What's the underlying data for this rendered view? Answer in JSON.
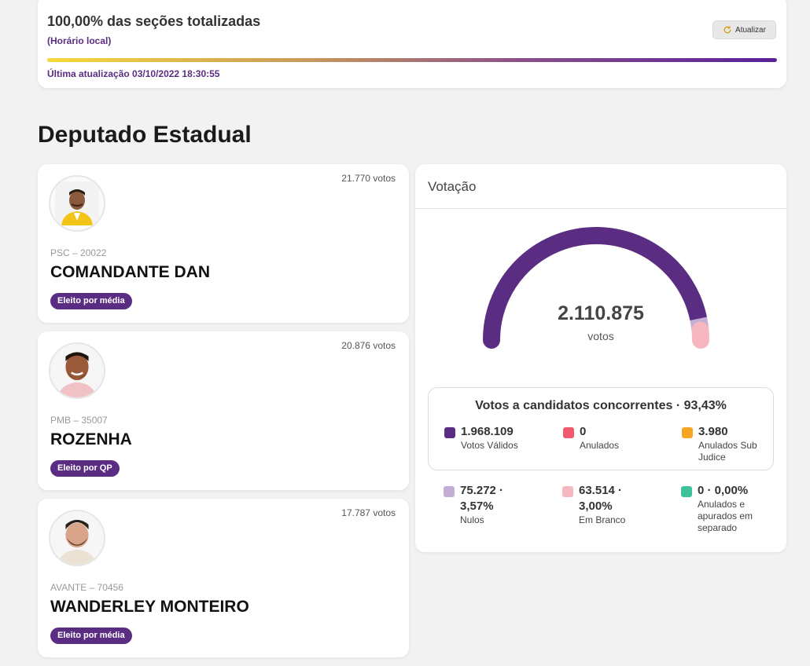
{
  "status": {
    "title": "100,00% das seções totalizadas",
    "local_time_note": "(Horário local)",
    "refresh_label": "Atualizar",
    "progress_percent": 100,
    "last_update": "Última atualização 03/10/2022 18:30:55"
  },
  "section_title": "Deputado Estadual",
  "candidates": [
    {
      "votes": "21.770 votos",
      "party": "PSC – 20022",
      "name": "COMANDANTE DAN",
      "badge": "Eleito por média"
    },
    {
      "votes": "20.876 votos",
      "party": "PMB – 35007",
      "name": "ROZENHA",
      "badge": "Eleito por QP"
    },
    {
      "votes": "17.787 votos",
      "party": "AVANTE – 70456",
      "name": "WANDERLEY MONTEIRO",
      "badge": "Eleito por média"
    }
  ],
  "votacao": {
    "header": "Votação",
    "total": "2.110.875",
    "total_label": "votos",
    "gauge_colors": {
      "valid": "#5a2d82",
      "nulos": "#c3afd6",
      "branco": "#f7b7c0"
    },
    "gauge_fractions": {
      "valid": 0.9343,
      "nulos": 0.0357,
      "branco": 0.03
    },
    "competing_title": "Votos a candidatos concorrentes · 93,43%",
    "valid_stats": [
      {
        "value": "1.968.109",
        "label": "Votos Válidos",
        "color": "#5a2d82"
      },
      {
        "value": "0",
        "label": "Anulados",
        "color": "#f05a6e"
      },
      {
        "value": "3.980",
        "label": "Anulados Sub Judice",
        "color": "#f5a623"
      }
    ],
    "other_stats": [
      {
        "value": "75.272 · 3,57%",
        "label": "Nulos",
        "color": "#c3afd6"
      },
      {
        "value": "63.514 · 3,00%",
        "label": "Em Branco",
        "color": "#f7b7c0"
      },
      {
        "value": "0 · 0,00%",
        "label": "Anulados e apurados em separado",
        "color": "#3fc29a"
      }
    ]
  }
}
